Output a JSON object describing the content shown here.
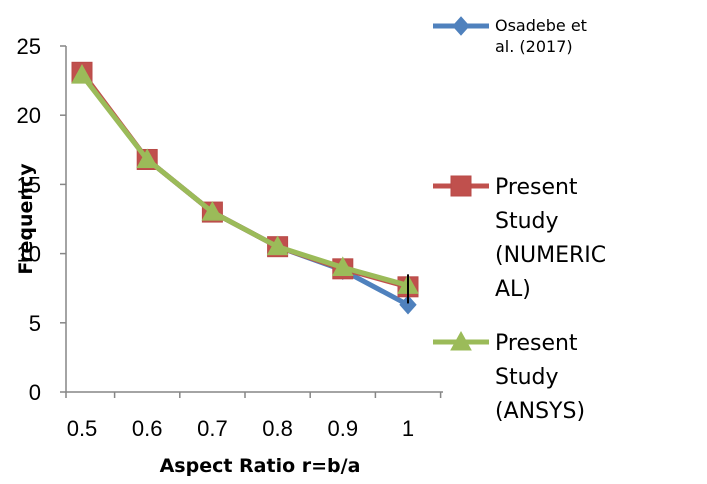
{
  "chart_data": {
    "type": "line",
    "xlabel": "Aspect Ratio r=b/a",
    "ylabel": "Frequency",
    "categories": [
      "0.5",
      "0.6",
      "0.7",
      "0.8",
      "0.9",
      "1"
    ],
    "ylim": [
      0,
      25
    ],
    "yticks": [
      "0",
      "5",
      "10",
      "15",
      "20",
      "25"
    ],
    "grid": false,
    "legend_position": "right",
    "series": [
      {
        "name": "Osadebe et al. (2017)",
        "legend_lines": [
          "Osadebe et",
          "al. (2017)"
        ],
        "color": "#4F81BD",
        "marker": "diamond",
        "values": [
          23.0,
          16.8,
          13.0,
          10.5,
          8.8,
          6.3
        ]
      },
      {
        "name": "Present Study (NUMERICAL)",
        "legend_lines": [
          "Present",
          "Study",
          "(NUMERIC",
          "AL)"
        ],
        "color": "#C0504D",
        "marker": "square",
        "values": [
          23.1,
          16.8,
          13.0,
          10.5,
          8.9,
          7.6
        ]
      },
      {
        "name": "Present Study (ANSYS)",
        "legend_lines": [
          "Present",
          "Study",
          "(ANSYS)"
        ],
        "color": "#9BBB59",
        "marker": "triangle",
        "values": [
          22.9,
          16.8,
          13.0,
          10.5,
          9.0,
          7.7
        ]
      }
    ]
  }
}
